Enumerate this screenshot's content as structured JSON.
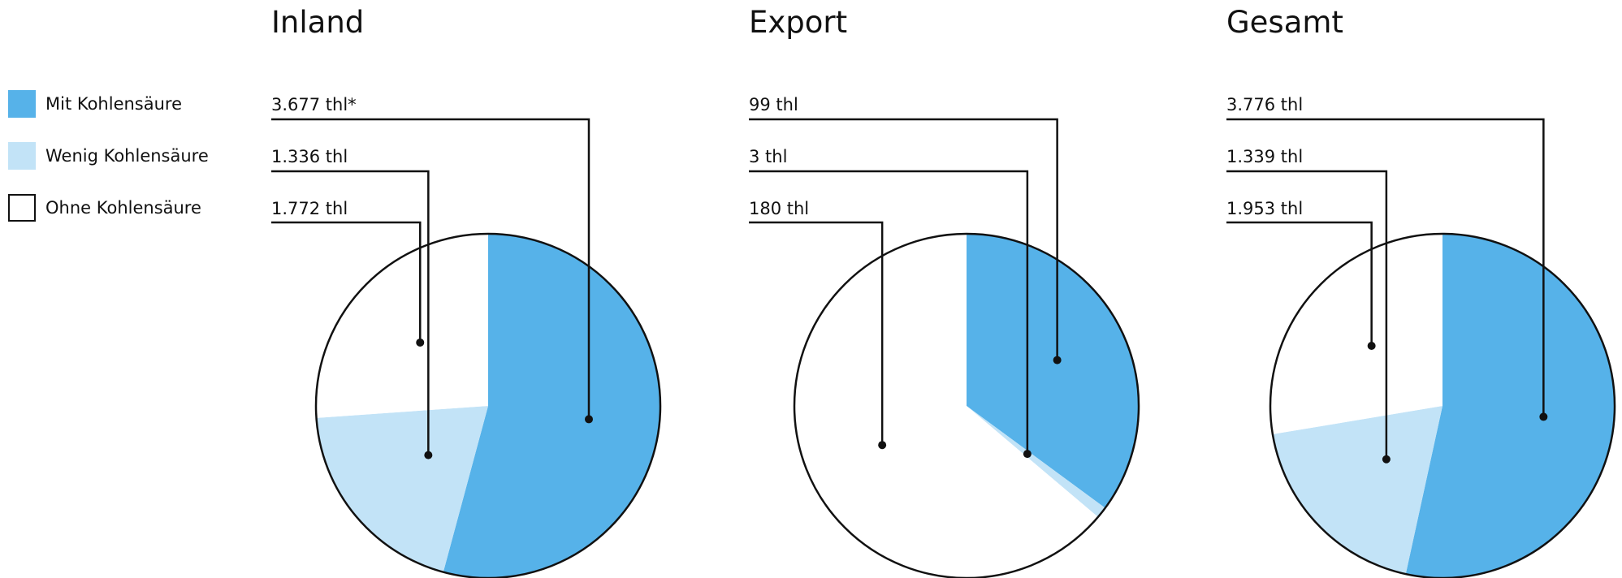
{
  "legend": {
    "items": [
      {
        "label": "Mit Kohlensäure",
        "color": "#56b2e9"
      },
      {
        "label": "Wenig Kohlensäure",
        "color": "#c2e3f7"
      },
      {
        "label": "Ohne Kohlensäure",
        "color": "#ffffff"
      }
    ]
  },
  "chart_data": [
    {
      "type": "pie",
      "title": "Inland",
      "categories": [
        "Mit Kohlensäure",
        "Wenig Kohlensäure",
        "Ohne Kohlensäure"
      ],
      "values": [
        3677,
        1336,
        1772
      ],
      "value_labels": [
        "3.677 thl*",
        "1.336 thl",
        "1.772 thl"
      ],
      "unit": "thl",
      "colors": [
        "#56b2e9",
        "#c2e3f7",
        "#ffffff"
      ]
    },
    {
      "type": "pie",
      "title": "Export",
      "categories": [
        "Mit Kohlensäure",
        "Wenig Kohlensäure",
        "Ohne Kohlensäure"
      ],
      "values": [
        99,
        3,
        180
      ],
      "value_labels": [
        "99 thl",
        "3 thl",
        "180 thl"
      ],
      "unit": "thl",
      "colors": [
        "#56b2e9",
        "#c2e3f7",
        "#ffffff"
      ]
    },
    {
      "type": "pie",
      "title": "Gesamt",
      "categories": [
        "Mit Kohlensäure",
        "Wenig Kohlensäure",
        "Ohne Kohlensäure"
      ],
      "values": [
        3776,
        1339,
        1953
      ],
      "value_labels": [
        "3.776 thl",
        "1.339 thl",
        "1.953 thl"
      ],
      "unit": "thl",
      "colors": [
        "#56b2e9",
        "#c2e3f7",
        "#ffffff"
      ]
    }
  ]
}
